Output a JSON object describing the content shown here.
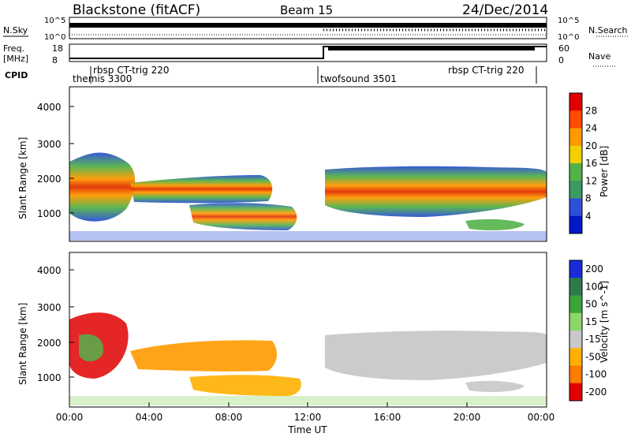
{
  "header": {
    "station": "Blackstone (fitACF)",
    "beam": "Beam 15",
    "date": "24/Dec/2014"
  },
  "status_panels": {
    "nsky_label": "N.Sky",
    "nsearch_label": "N.Search",
    "nsky_ticks": [
      "10^5",
      "10^0"
    ],
    "nsearch_ticks": [
      "10^5",
      "10^0"
    ],
    "freq_label_line1": "Freq.",
    "freq_label_line2": "[MHz]",
    "freq_ticks": [
      "18",
      "8"
    ],
    "nave_label": "Nave",
    "nave_ticks": [
      "60",
      "0"
    ],
    "cpid_label": "CPID",
    "cpid_annotations": [
      {
        "text": "rbsp CT-trig 220",
        "time": "00:45"
      },
      {
        "text": "themis 3300",
        "time": "00:00"
      },
      {
        "text": "twofsound 3501",
        "time": "12:45"
      },
      {
        "text": "rbsp CT-trig 220",
        "time": "19:15"
      }
    ]
  },
  "chart_data": [
    {
      "type": "heatmap",
      "title": "",
      "ylabel": "Slant Range [km]",
      "xlabel": "",
      "y_ticks": [
        "1000",
        "2000",
        "3000",
        "4000"
      ],
      "ylim": [
        200,
        4600
      ],
      "xlim": [
        "00:00",
        "24:00"
      ],
      "colorbar": {
        "label": "Power [dB]",
        "ticks": [
          "4",
          "8",
          "12",
          "16",
          "20",
          "24",
          "28"
        ],
        "range": [
          0,
          32
        ],
        "colors": [
          "#0018c8",
          "#2c50d8",
          "#3a9a60",
          "#54b24a",
          "#f4d000",
          "#ff9a00",
          "#ff4a00",
          "#e00000"
        ]
      },
      "description_bands": [
        {
          "time_start": "00:00",
          "time_end": "03:30",
          "range_start": 800,
          "range_end": 2500
        },
        {
          "time_start": "03:00",
          "time_end": "10:30",
          "range_start": 1300,
          "range_end": 1900
        },
        {
          "time_start": "05:00",
          "time_end": "11:30",
          "range_start": 600,
          "range_end": 1200
        },
        {
          "time_start": "13:00",
          "time_end": "23:50",
          "range_start": 900,
          "range_end": 2200
        }
      ]
    },
    {
      "type": "heatmap",
      "title": "",
      "ylabel": "Slant Range [km]",
      "xlabel": "Time UT",
      "x_ticks": [
        "00:00",
        "04:00",
        "08:00",
        "12:00",
        "16:00",
        "20:00",
        "00:00"
      ],
      "y_ticks": [
        "1000",
        "2000",
        "3000",
        "4000"
      ],
      "ylim": [
        200,
        4600
      ],
      "xlim": [
        "00:00",
        "24:00"
      ],
      "colorbar": {
        "label": "Velocity [m s^-1]",
        "ticks": [
          "200",
          "100",
          "50",
          "15",
          "-15",
          "-50",
          "-100",
          "-200"
        ],
        "colors": [
          "#1a2ad8",
          "#2f7a4a",
          "#3aa63a",
          "#8ed66a",
          "#c8c8c8",
          "#ffb000",
          "#ff7a00",
          "#e00000"
        ]
      }
    }
  ],
  "colors": {
    "grey_scatter": "#c8c8c8",
    "frame": "#000000"
  }
}
